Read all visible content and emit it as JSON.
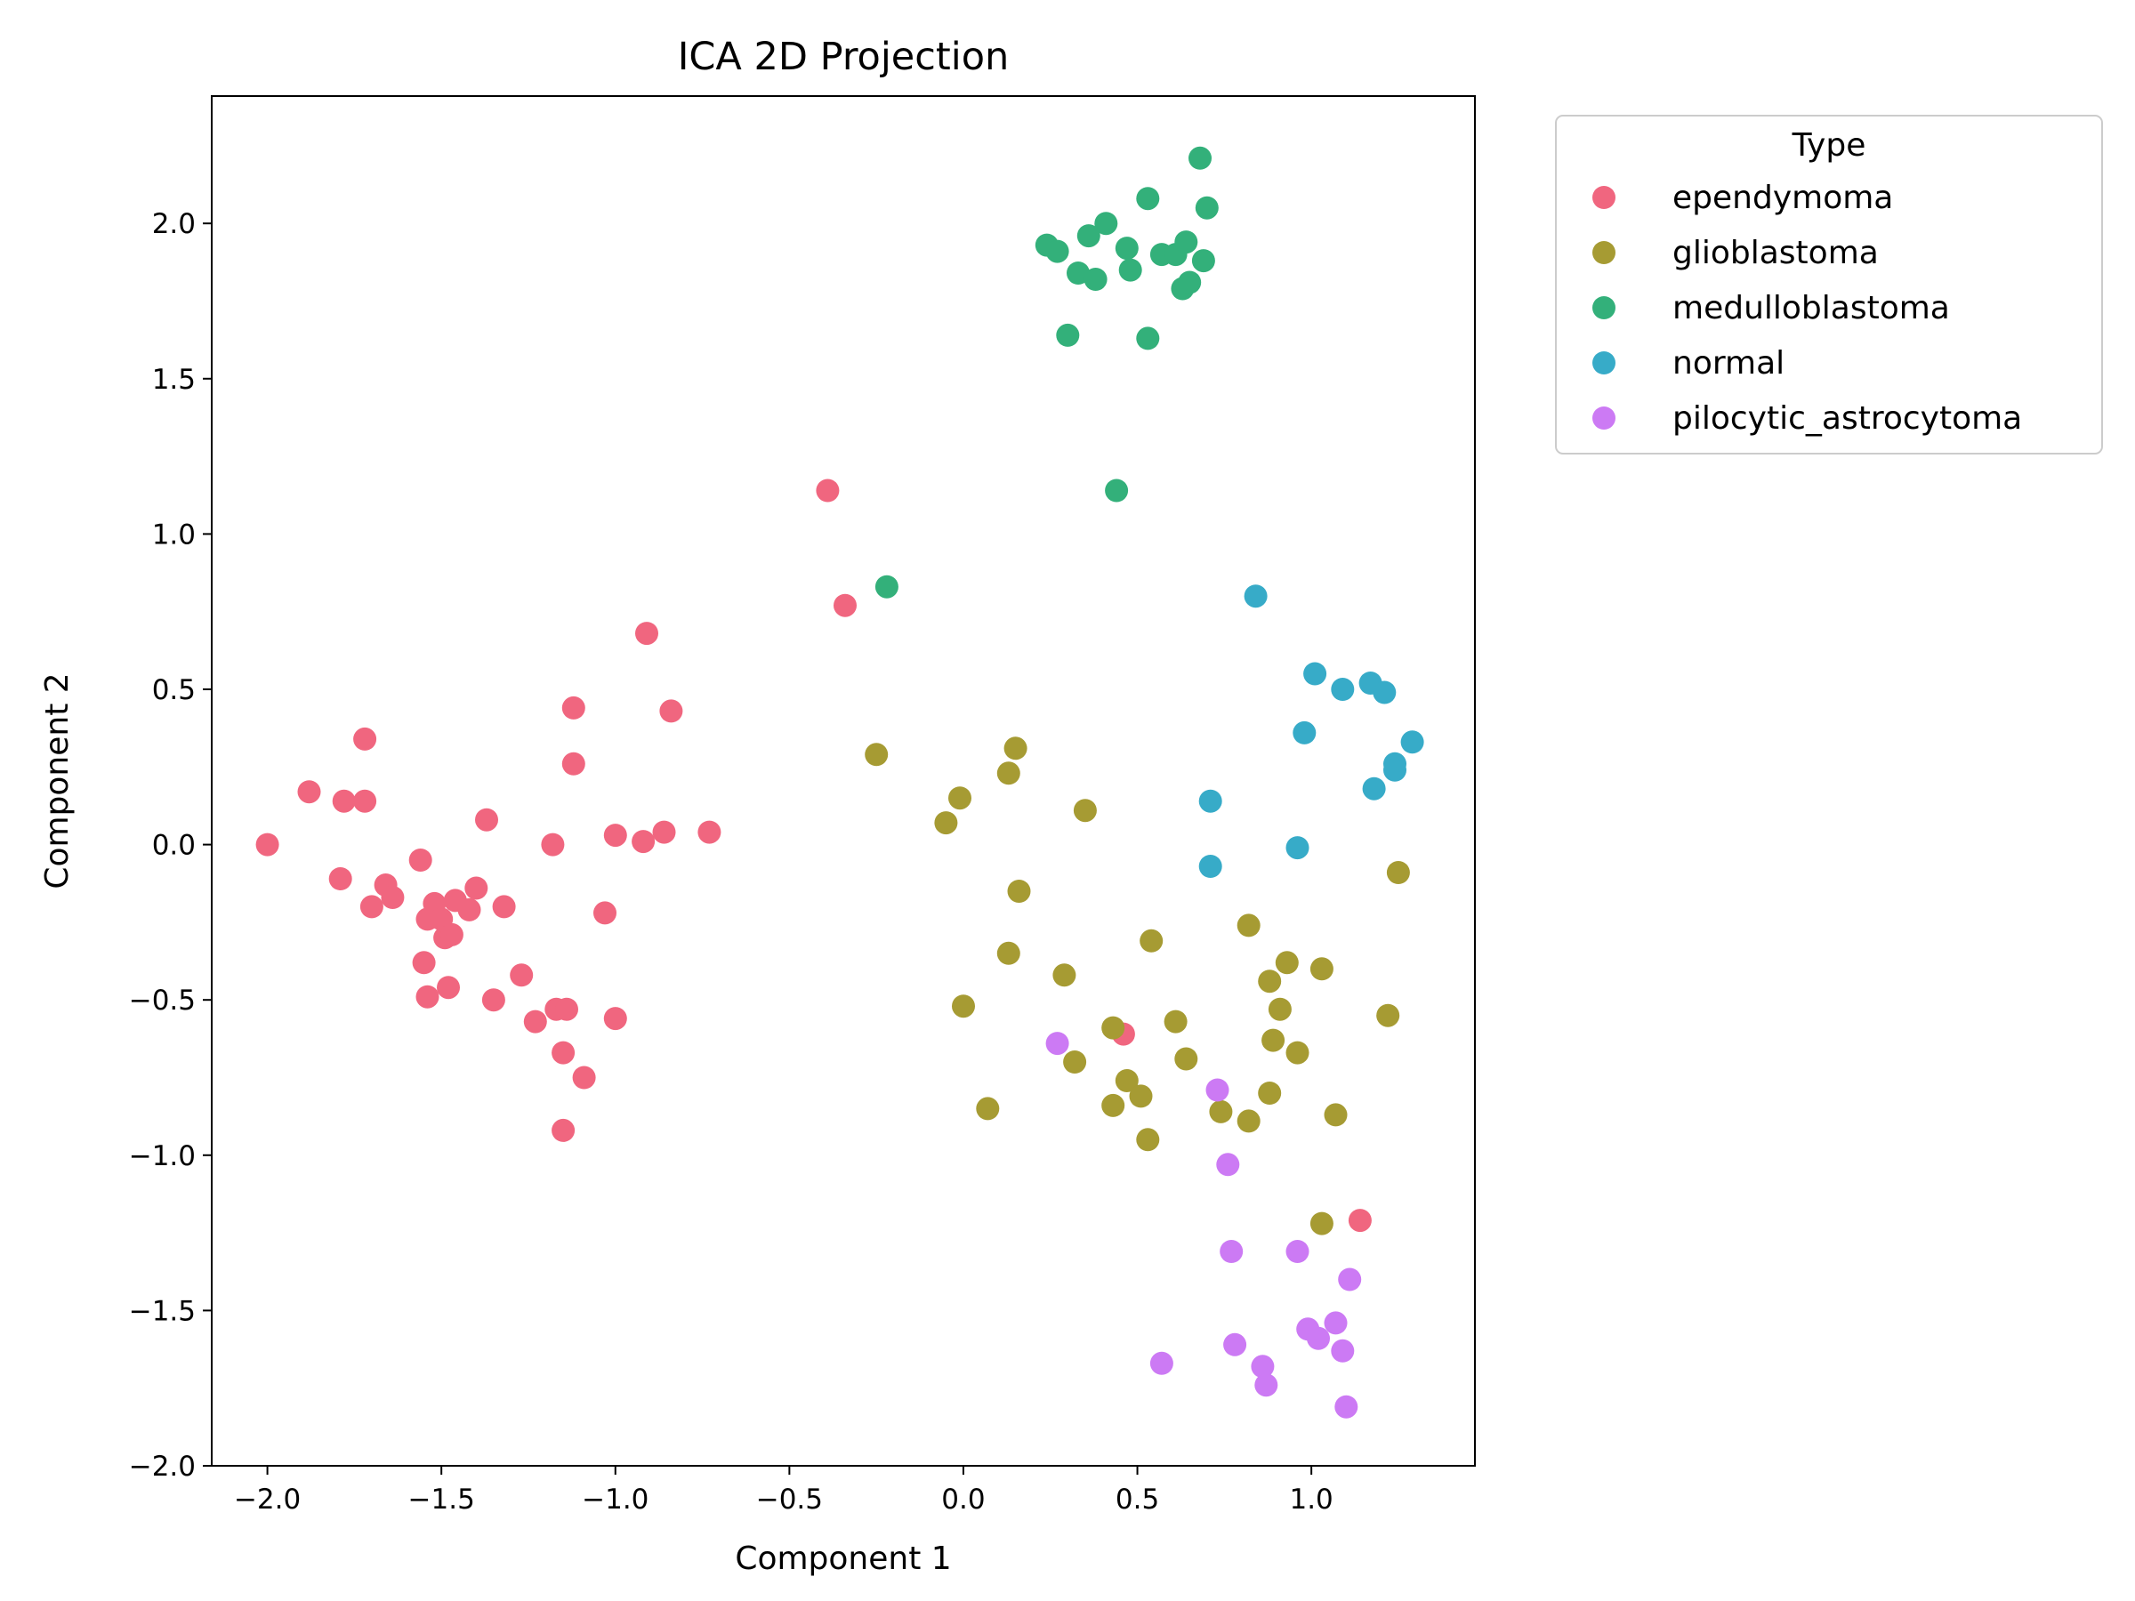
{
  "chart_data": {
    "type": "scatter",
    "title": "ICA 2D Projection",
    "xlabel": "Component 1",
    "ylabel": "Component 2",
    "xlim": [
      -2.16,
      1.47
    ],
    "ylim": [
      -2.0,
      2.41
    ],
    "x_ticks": [
      -2.0,
      -1.5,
      -1.0,
      -0.5,
      0.0,
      0.5,
      1.0
    ],
    "x_tick_labels": [
      "−2.0",
      "−1.5",
      "−1.0",
      "−0.5",
      "0.0",
      "0.5",
      "1.0"
    ],
    "y_ticks": [
      -2.0,
      -1.5,
      -1.0,
      -0.5,
      0.0,
      0.5,
      1.0,
      1.5,
      2.0
    ],
    "y_tick_labels": [
      "−2.0",
      "−1.5",
      "−1.0",
      "−0.5",
      "0.0",
      "0.5",
      "1.0",
      "1.5",
      "2.0"
    ],
    "grid": false,
    "legend": {
      "title": "Type",
      "placement": "outside-upper-right"
    },
    "series": [
      {
        "name": "ependymoma",
        "color": "#f0667f",
        "points": [
          [
            -2.0,
            0.0
          ],
          [
            -1.88,
            0.17
          ],
          [
            -1.78,
            0.14
          ],
          [
            -1.72,
            0.14
          ],
          [
            -1.72,
            0.34
          ],
          [
            -1.79,
            -0.11
          ],
          [
            -1.7,
            -0.2
          ],
          [
            -1.66,
            -0.13
          ],
          [
            -1.64,
            -0.17
          ],
          [
            -1.56,
            -0.05
          ],
          [
            -1.54,
            -0.24
          ],
          [
            -1.52,
            -0.19
          ],
          [
            -1.5,
            -0.24
          ],
          [
            -1.49,
            -0.3
          ],
          [
            -1.47,
            -0.29
          ],
          [
            -1.46,
            -0.18
          ],
          [
            -1.55,
            -0.38
          ],
          [
            -1.54,
            -0.49
          ],
          [
            -1.48,
            -0.46
          ],
          [
            -1.42,
            -0.21
          ],
          [
            -1.4,
            -0.14
          ],
          [
            -1.37,
            0.08
          ],
          [
            -1.35,
            -0.5
          ],
          [
            -1.32,
            -0.2
          ],
          [
            -1.27,
            -0.42
          ],
          [
            -1.23,
            -0.57
          ],
          [
            -1.18,
            0.0
          ],
          [
            -1.17,
            -0.53
          ],
          [
            -1.14,
            -0.53
          ],
          [
            -1.15,
            -0.67
          ],
          [
            -1.09,
            -0.75
          ],
          [
            -1.15,
            -0.92
          ],
          [
            -1.12,
            0.44
          ],
          [
            -1.12,
            0.26
          ],
          [
            -1.03,
            -0.22
          ],
          [
            -1.0,
            0.03
          ],
          [
            -1.0,
            -0.56
          ],
          [
            -0.92,
            0.01
          ],
          [
            -0.91,
            0.68
          ],
          [
            -0.86,
            0.04
          ],
          [
            -0.84,
            0.43
          ],
          [
            -0.73,
            0.04
          ],
          [
            -0.39,
            1.14
          ],
          [
            -0.34,
            0.77
          ],
          [
            0.46,
            -0.61
          ],
          [
            1.14,
            -1.21
          ]
        ]
      },
      {
        "name": "glioblastoma",
        "color": "#a69b33",
        "points": [
          [
            -0.25,
            0.29
          ],
          [
            -0.05,
            0.07
          ],
          [
            -0.01,
            0.15
          ],
          [
            0.13,
            0.23
          ],
          [
            0.15,
            0.31
          ],
          [
            0.35,
            0.11
          ],
          [
            0.16,
            -0.15
          ],
          [
            0.13,
            -0.35
          ],
          [
            0.29,
            -0.42
          ],
          [
            0.0,
            -0.52
          ],
          [
            0.07,
            -0.85
          ],
          [
            0.32,
            -0.7
          ],
          [
            0.43,
            -0.59
          ],
          [
            0.43,
            -0.84
          ],
          [
            0.47,
            -0.76
          ],
          [
            0.51,
            -0.81
          ],
          [
            0.54,
            -0.31
          ],
          [
            0.53,
            -0.95
          ],
          [
            0.61,
            -0.57
          ],
          [
            0.64,
            -0.69
          ],
          [
            0.74,
            -0.86
          ],
          [
            0.82,
            -0.26
          ],
          [
            0.82,
            -0.89
          ],
          [
            0.88,
            -0.8
          ],
          [
            0.88,
            -0.44
          ],
          [
            0.89,
            -0.63
          ],
          [
            0.91,
            -0.53
          ],
          [
            0.93,
            -0.38
          ],
          [
            0.96,
            -0.67
          ],
          [
            1.03,
            -0.4
          ],
          [
            1.07,
            -0.87
          ],
          [
            1.03,
            -1.22
          ],
          [
            1.22,
            -0.55
          ],
          [
            1.25,
            -0.09
          ]
        ]
      },
      {
        "name": "medulloblastoma",
        "color": "#33b07a",
        "points": [
          [
            0.68,
            2.21
          ],
          [
            0.53,
            2.08
          ],
          [
            0.7,
            2.05
          ],
          [
            0.41,
            2.0
          ],
          [
            0.36,
            1.96
          ],
          [
            0.24,
            1.93
          ],
          [
            0.27,
            1.91
          ],
          [
            0.47,
            1.92
          ],
          [
            0.57,
            1.9
          ],
          [
            0.61,
            1.9
          ],
          [
            0.64,
            1.94
          ],
          [
            0.69,
            1.88
          ],
          [
            0.48,
            1.85
          ],
          [
            0.33,
            1.84
          ],
          [
            0.38,
            1.82
          ],
          [
            0.63,
            1.79
          ],
          [
            0.65,
            1.81
          ],
          [
            0.3,
            1.64
          ],
          [
            0.53,
            1.63
          ],
          [
            0.44,
            1.14
          ],
          [
            -0.22,
            0.83
          ]
        ]
      },
      {
        "name": "normal",
        "color": "#37abc8",
        "points": [
          [
            0.84,
            0.8
          ],
          [
            1.01,
            0.55
          ],
          [
            1.09,
            0.5
          ],
          [
            1.17,
            0.52
          ],
          [
            1.21,
            0.49
          ],
          [
            0.98,
            0.36
          ],
          [
            1.29,
            0.33
          ],
          [
            1.24,
            0.26
          ],
          [
            1.24,
            0.24
          ],
          [
            1.18,
            0.18
          ],
          [
            0.71,
            0.14
          ],
          [
            0.96,
            -0.01
          ],
          [
            0.71,
            -0.07
          ]
        ]
      },
      {
        "name": "pilocytic_astrocytoma",
        "color": "#cc7af4",
        "points": [
          [
            0.27,
            -0.64
          ],
          [
            0.73,
            -0.79
          ],
          [
            0.76,
            -1.03
          ],
          [
            0.77,
            -1.31
          ],
          [
            0.96,
            -1.31
          ],
          [
            1.11,
            -1.4
          ],
          [
            1.07,
            -1.54
          ],
          [
            0.99,
            -1.56
          ],
          [
            1.02,
            -1.59
          ],
          [
            1.09,
            -1.63
          ],
          [
            0.78,
            -1.61
          ],
          [
            0.57,
            -1.67
          ],
          [
            0.86,
            -1.68
          ],
          [
            0.87,
            -1.74
          ],
          [
            1.1,
            -1.81
          ]
        ]
      }
    ]
  }
}
